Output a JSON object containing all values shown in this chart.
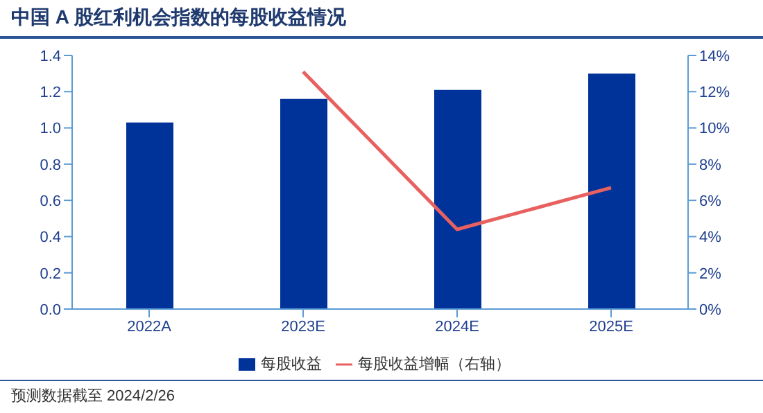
{
  "chart_data": {
    "type": "bar",
    "title": "中国 A 股红利机会指数的每股收益情况",
    "categories": [
      "2022A",
      "2023E",
      "2024E",
      "2025E"
    ],
    "series": [
      {
        "name": "每股收益",
        "color": "#003399",
        "values": [
          1.03,
          1.16,
          1.21,
          1.3
        ]
      },
      {
        "name": "每股收益增幅（右轴）",
        "type": "line",
        "axis": "y2",
        "color": "#e8605f",
        "values": [
          null,
          13.1,
          4.4,
          6.7
        ]
      }
    ],
    "ylim": [
      0,
      1.4
    ],
    "yticks": [
      {
        "value": 0,
        "label": "0.0"
      },
      {
        "value": 0.2,
        "label": "0.2"
      },
      {
        "value": 0.4,
        "label": "0.4"
      },
      {
        "value": 0.6,
        "label": "0.6"
      },
      {
        "value": 0.8,
        "label": "0.8"
      },
      {
        "value": 1,
        "label": "1.0"
      },
      {
        "value": 1.2,
        "label": "1.2"
      },
      {
        "value": 1.4,
        "label": "1.4"
      }
    ],
    "y2lim": [
      0,
      14
    ],
    "y2ticks": [
      {
        "value": 0,
        "label": "0%"
      },
      {
        "value": 2,
        "label": "2%"
      },
      {
        "value": 4,
        "label": "4%"
      },
      {
        "value": 6,
        "label": "6%"
      },
      {
        "value": 8,
        "label": "8%"
      },
      {
        "value": 10,
        "label": "10%"
      },
      {
        "value": 12,
        "label": "12%"
      },
      {
        "value": 14,
        "label": "14%"
      }
    ],
    "grid": false,
    "legend": "bottom",
    "marker": "none",
    "line_style": "solid",
    "annotations": [
      "预测数据截至 2024/2/26"
    ]
  }
}
